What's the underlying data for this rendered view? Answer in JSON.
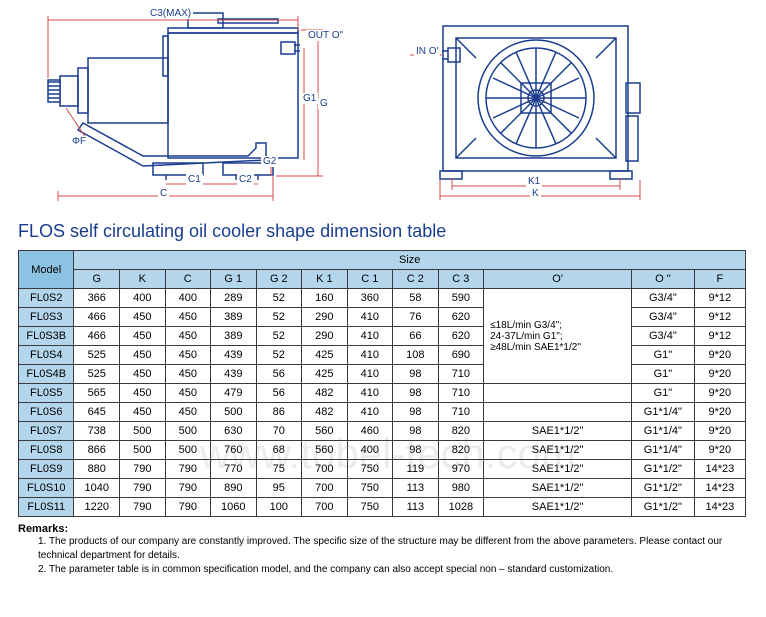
{
  "diagram_labels": {
    "c3max": "C3(MAX)",
    "out": "OUT O\"",
    "phi_f": "ΦF",
    "c1": "C1",
    "c2": "C2",
    "c": "C",
    "g1": "G1",
    "g2": "G2",
    "g": "G",
    "in": "IN O' ",
    "k1": "K1",
    "k": "K"
  },
  "title": "FLOS self circulating oil cooler shape dimension table",
  "colors": {
    "header_bg": "#8cc3e4",
    "cell_bg": "#b4d6ec",
    "border": "#3a3a3a",
    "blue_text": "#1a3d8f",
    "diagram_stroke": "#1a3d8f"
  },
  "headers": {
    "model": "Model",
    "size": "Size",
    "cols": [
      "G",
      "K",
      "C",
      "G 1",
      "G 2",
      "K 1",
      "C 1",
      "C 2",
      "C 3",
      "O'",
      "O \"",
      "F"
    ]
  },
  "oprime_merged": "≤18L/min  G3/4\";\n24-37L/min  G1\";\n≥48L/min  SAE1*1/2\"",
  "rows": [
    {
      "model": "FL0S2",
      "vals": [
        "366",
        "400",
        "400",
        "289",
        "52",
        "160",
        "360",
        "58",
        "590",
        null,
        "G3/4\"",
        "9*12"
      ]
    },
    {
      "model": "FL0S3",
      "vals": [
        "466",
        "450",
        "450",
        "389",
        "52",
        "290",
        "410",
        "76",
        "620",
        null,
        "G3/4\"",
        "9*12"
      ]
    },
    {
      "model": "FL0S3B",
      "vals": [
        "466",
        "450",
        "450",
        "389",
        "52",
        "290",
        "410",
        "66",
        "620",
        null,
        "G3/4\"",
        "9*12"
      ]
    },
    {
      "model": "FL0S4",
      "vals": [
        "525",
        "450",
        "450",
        "439",
        "52",
        "425",
        "410",
        "108",
        "690",
        null,
        "G1\"",
        "9*20"
      ]
    },
    {
      "model": "FL0S4B",
      "vals": [
        "525",
        "450",
        "450",
        "439",
        "56",
        "425",
        "410",
        "98",
        "710",
        null,
        "G1\"",
        "9*20"
      ]
    },
    {
      "model": "FL0S5",
      "vals": [
        "565",
        "450",
        "450",
        "479",
        "56",
        "482",
        "410",
        "98",
        "710",
        "",
        "G1\"",
        "9*20"
      ]
    },
    {
      "model": "FL0S6",
      "vals": [
        "645",
        "450",
        "450",
        "500",
        "86",
        "482",
        "410",
        "98",
        "710",
        "",
        "G1*1/4\"",
        "9*20"
      ]
    },
    {
      "model": "FL0S7",
      "vals": [
        "738",
        "500",
        "500",
        "630",
        "70",
        "560",
        "460",
        "98",
        "820",
        "SAE1*1/2\"",
        "G1*1/4\"",
        "9*20"
      ]
    },
    {
      "model": "FL0S8",
      "vals": [
        "866",
        "500",
        "500",
        "760",
        "68",
        "560",
        "400",
        "98",
        "820",
        "SAE1*1/2\"",
        "G1*1/4\"",
        "9*20"
      ]
    },
    {
      "model": "FL0S9",
      "vals": [
        "880",
        "790",
        "790",
        "770",
        "75",
        "700",
        "750",
        "119",
        "970",
        "SAE1*1/2\"",
        "G1*1/2\"",
        "14*23"
      ]
    },
    {
      "model": "FL0S10",
      "vals": [
        "1040",
        "790",
        "790",
        "890",
        "95",
        "700",
        "750",
        "113",
        "980",
        "SAE1*1/2\"",
        "G1*1/2\"",
        "14*23"
      ]
    },
    {
      "model": "FL0S11",
      "vals": [
        "1220",
        "790",
        "790",
        "1060",
        "100",
        "700",
        "750",
        "113",
        "1028",
        "SAE1*1/2\"",
        "G1*1/2\"",
        "14*23"
      ]
    }
  ],
  "remarks_title": "Remarks:",
  "remarks": [
    "1. The products of our company are constantly improved. The specific size of the structure may be different from the above parameters. Please contact our technical department for details.",
    "2. The parameter table is in common specification model, and the company can also accept special non – standard customization."
  ],
  "watermark": "www.tobel-tech.com"
}
